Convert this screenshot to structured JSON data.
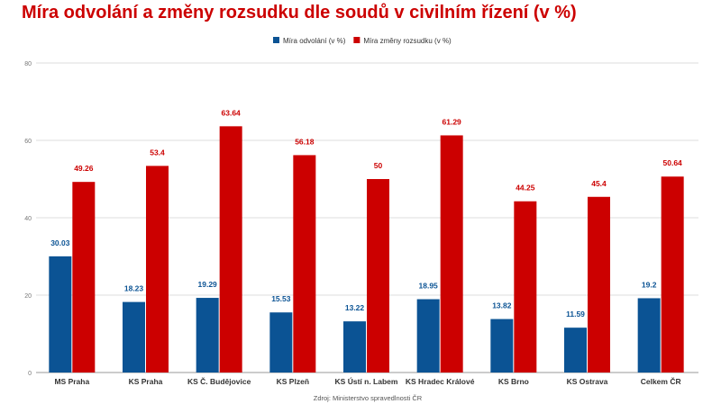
{
  "chart_data": {
    "type": "bar",
    "title": "Míra odvolání a změny rozsudku dle soudů v civilním řízení (v %)",
    "categories": [
      "MS Praha",
      "KS Praha",
      "KS Č. Budějovice",
      "KS Plzeň",
      "KS Ústí n. Labem",
      "KS Hradec Králové",
      "KS Brno",
      "KS Ostrava",
      "Celkem ČR"
    ],
    "series": [
      {
        "name": "Míra odvolání (v %)",
        "color": "#0b5394",
        "values": [
          30.03,
          18.23,
          19.29,
          15.53,
          13.22,
          18.95,
          13.82,
          11.59,
          19.2
        ]
      },
      {
        "name": "Míra změny rozsudku (v %)",
        "color": "#cc0000",
        "values": [
          49.26,
          53.4,
          63.64,
          56.18,
          50,
          61.29,
          44.25,
          45.4,
          50.64
        ]
      }
    ],
    "ylim": [
      0,
      80
    ],
    "yticks": [
      0,
      20,
      40,
      60,
      80
    ],
    "grid": true,
    "legend": "top-right",
    "source": "Zdroj: Ministerstvo spravedlnosti ČR"
  }
}
